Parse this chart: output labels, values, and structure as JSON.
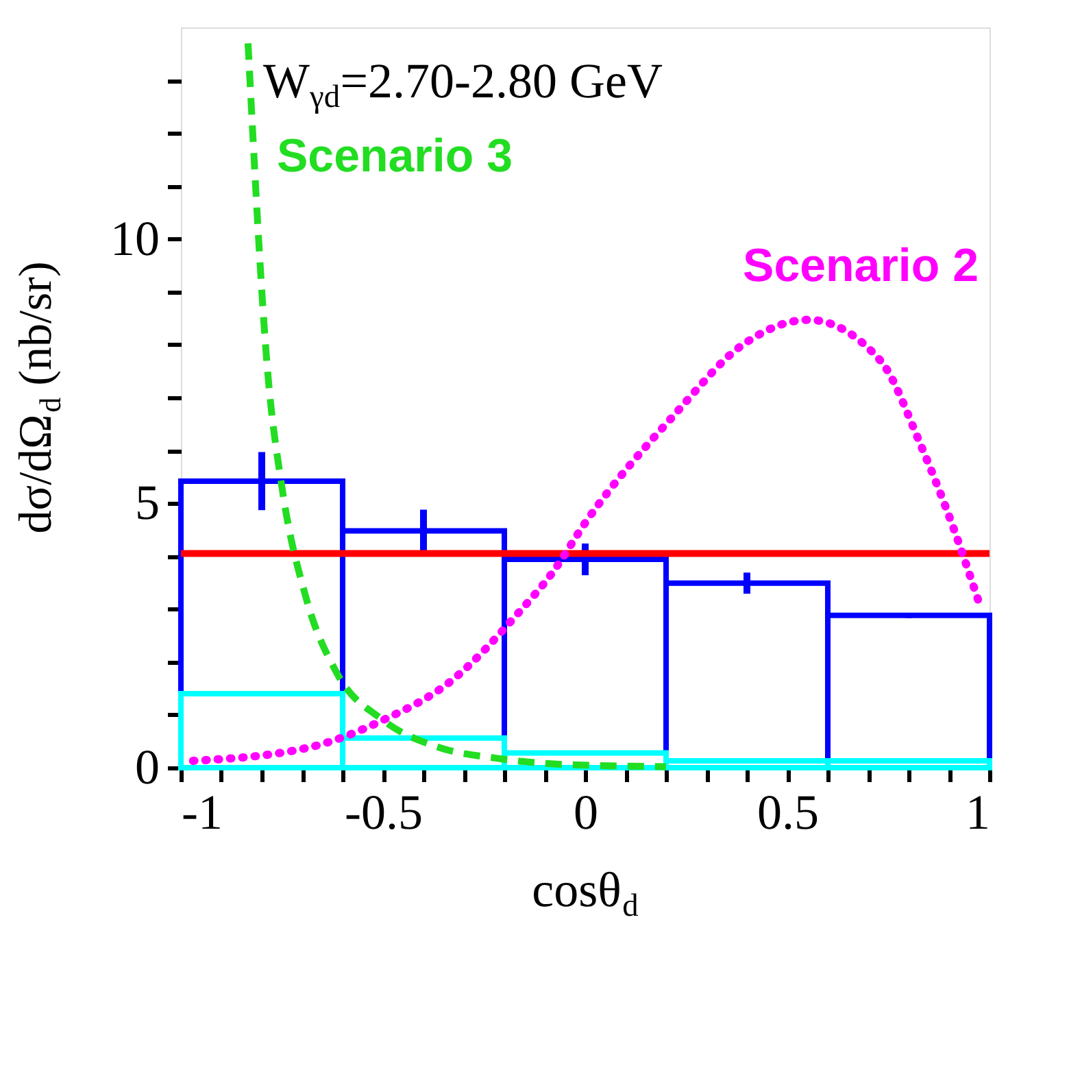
{
  "chart_data": {
    "type": "histogram",
    "xlabel": "cosθ$_{d}$",
    "ylabel": "dσ/dΩ$_{d}$ (nb/sr)",
    "annotations": [
      "W$_{γd}$=2.70-2.80 GeV"
    ],
    "bins": [
      -1,
      -0.6,
      -0.2,
      0.2,
      0.6,
      1
    ],
    "series": [
      {
        "type": "histogram",
        "color": "#0000ff",
        "values": [
          5.42,
          4.48,
          3.94,
          3.49,
          2.88
        ],
        "errors": [
          0.55,
          0.4,
          0.3,
          0.2,
          0.05
        ]
      },
      {
        "type": "histogram",
        "color": "#00ffff",
        "values": [
          1.4,
          0.56,
          0.28,
          0.13,
          0.13
        ]
      },
      {
        "type": "line",
        "color": "#ff0000",
        "x": [
          -1,
          1
        ],
        "values": [
          4.05,
          4.05
        ],
        "line_style": "solid"
      },
      {
        "type": "line",
        "name": "Scenario 3",
        "color": "#22dd22",
        "line_style": "dashed",
        "x": [
          -0.834,
          -0.785,
          -0.75,
          -0.69,
          -0.615,
          -0.5,
          -0.36,
          -0.22,
          -0.05,
          0.2
        ],
        "values": [
          13.7,
          7.45,
          5.3,
          3.2,
          1.8,
          0.9,
          0.38,
          0.18,
          0.06,
          0.02
        ]
      },
      {
        "type": "line",
        "name": "Scenario 2",
        "color": "#ff00ff",
        "line_style": "dotted",
        "x": [
          -0.97,
          -0.685,
          -0.5,
          -0.33,
          -0.165,
          -0.08,
          0.0,
          0.22,
          0.39,
          0.552,
          0.73,
          0.83,
          0.91,
          0.975
        ],
        "values": [
          0.13,
          0.38,
          0.9,
          1.65,
          2.93,
          3.7,
          4.63,
          6.67,
          8.0,
          8.47,
          7.7,
          6.1,
          4.55,
          3.1
        ]
      }
    ],
    "xlim": [
      -1,
      1
    ],
    "xticks": [
      -1,
      {
        "value": -0.9,
        "label": null
      },
      {
        "value": -0.8,
        "label": null
      },
      {
        "value": -0.7,
        "label": null
      },
      {
        "value": -0.6,
        "label": null
      },
      -0.5,
      {
        "value": -0.4,
        "label": null
      },
      {
        "value": -0.3,
        "label": null
      },
      {
        "value": -0.2,
        "label": null
      },
      {
        "value": -0.1,
        "label": null
      },
      0,
      {
        "value": 0.1,
        "label": null
      },
      {
        "value": 0.2,
        "label": null
      },
      {
        "value": 0.3,
        "label": null
      },
      {
        "value": 0.4,
        "label": null
      },
      0.5,
      {
        "value": 0.6,
        "label": null
      },
      {
        "value": 0.7,
        "label": null
      },
      {
        "value": 0.8,
        "label": null
      },
      {
        "value": 0.9,
        "label": null
      },
      1
    ],
    "ylim": [
      0,
      14
    ],
    "yticks": [
      0,
      {
        "value": 1,
        "label": null
      },
      {
        "value": 2,
        "label": null
      },
      {
        "value": 3,
        "label": null
      },
      {
        "value": 4,
        "label": null
      },
      5,
      {
        "value": 6,
        "label": null
      },
      {
        "value": 7,
        "label": null
      },
      {
        "value": 8,
        "label": null
      },
      {
        "value": 9,
        "label": null
      },
      10,
      {
        "value": 11,
        "label": null
      },
      {
        "value": 12,
        "label": null
      },
      {
        "value": 13,
        "label": null
      }
    ],
    "grid": false
  }
}
